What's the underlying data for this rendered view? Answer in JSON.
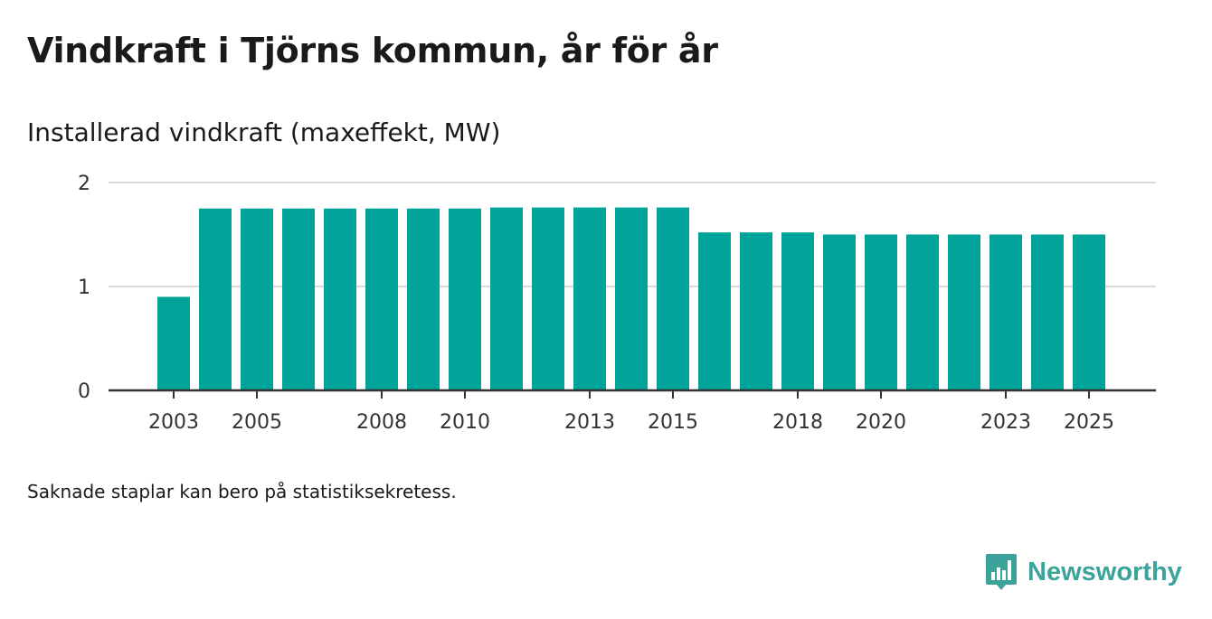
{
  "header": {
    "title": "Vindkraft i Tjörns kommun, år för år",
    "subtitle": "Installerad vindkraft (maxeffekt, MW)"
  },
  "footer": {
    "note": "Saknade staplar kan bero på statistiksekretess.",
    "brand": "Newsworthy"
  },
  "colors": {
    "bar": "#00a398",
    "grid": "#d9d9d9",
    "axis": "#333333",
    "brand": "#3ba39a"
  },
  "chart_data": {
    "type": "bar",
    "title": "Vindkraft i Tjörns kommun, år för år",
    "ylabel": "Installerad vindkraft (maxeffekt, MW)",
    "xlabel": "",
    "categories": [
      "2003",
      "2004",
      "2005",
      "2006",
      "2007",
      "2008",
      "2009",
      "2010",
      "2011",
      "2012",
      "2013",
      "2014",
      "2015",
      "2016",
      "2017",
      "2018",
      "2019",
      "2020",
      "2021",
      "2022",
      "2023",
      "2024",
      "2025"
    ],
    "values": [
      0.9,
      1.75,
      1.75,
      1.75,
      1.75,
      1.75,
      1.75,
      1.75,
      1.76,
      1.76,
      1.76,
      1.76,
      1.76,
      1.52,
      1.52,
      1.52,
      1.5,
      1.5,
      1.5,
      1.5,
      1.5,
      1.5,
      1.5
    ],
    "ylim": [
      0,
      2
    ],
    "yticks": [
      "0",
      "1",
      "2"
    ],
    "xtick_labels": [
      "2003",
      "2005",
      "2008",
      "2010",
      "2013",
      "2015",
      "2018",
      "2020",
      "2023",
      "2025"
    ],
    "grid": true
  }
}
